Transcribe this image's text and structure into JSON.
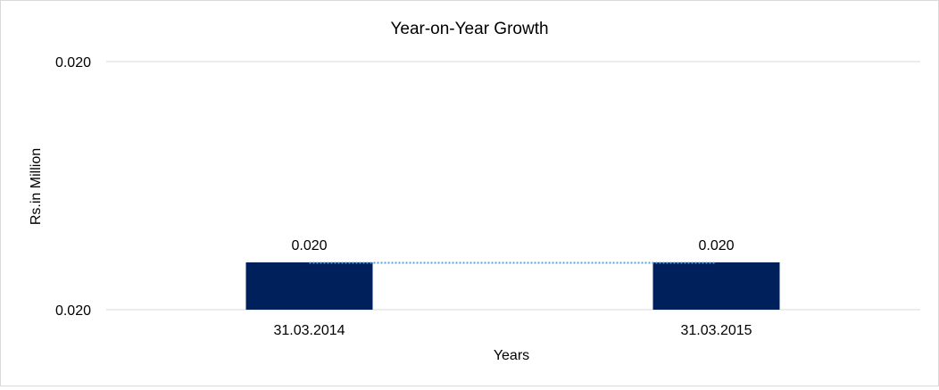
{
  "chart_data": {
    "type": "bar",
    "title": "Year-on-Year Growth",
    "xlabel": "Years",
    "ylabel": "Rs.in Million",
    "categories": [
      "31.03.2014",
      "31.03.2015"
    ],
    "values": [
      0.02,
      0.02
    ],
    "data_labels": [
      "0.020",
      "0.020"
    ],
    "y_tick_labels": [
      "0.020",
      "0.020"
    ],
    "grid": true,
    "legend": "none",
    "trendline": "dotted",
    "colors": {
      "bar": "#00205b",
      "trendline": "#5b9bd5",
      "gridline": "#d9d9d9"
    }
  }
}
